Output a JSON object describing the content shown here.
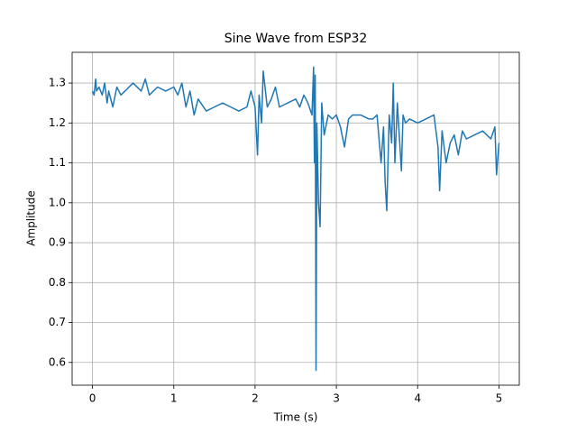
{
  "chart_data": {
    "type": "line",
    "title": "Sine Wave from ESP32",
    "x_label": "Time (s)",
    "y_label": "Amplitude",
    "grid": true,
    "xlim": [
      -0.25,
      5.25
    ],
    "xticks": [
      0,
      1,
      2,
      3,
      4,
      5
    ],
    "ylim": [
      0.543,
      1.377
    ],
    "yticks": [
      0.6,
      0.7,
      0.8,
      0.9,
      {
        "value": 1,
        "label": "1.0"
      },
      1.1,
      1.2,
      1.3
    ],
    "x": [
      0,
      0.02,
      0.04,
      0.05,
      0.08,
      0.12,
      0.15,
      0.18,
      0.2,
      0.25,
      0.3,
      0.35,
      0.4,
      0.5,
      0.6,
      0.65,
      0.7,
      0.8,
      0.9,
      1.0,
      1.05,
      1.1,
      1.15,
      1.2,
      1.25,
      1.3,
      1.4,
      1.5,
      1.6,
      1.7,
      1.8,
      1.9,
      1.95,
      2.0,
      2.03,
      2.05,
      2.08,
      2.1,
      2.15,
      2.2,
      2.25,
      2.3,
      2.4,
      2.5,
      2.55,
      2.6,
      2.65,
      2.7,
      2.72,
      2.73,
      2.74,
      2.75,
      2.76,
      2.78,
      2.8,
      2.82,
      2.85,
      2.9,
      2.95,
      3.0,
      3.05,
      3.1,
      3.15,
      3.2,
      3.3,
      3.4,
      3.45,
      3.5,
      3.55,
      3.58,
      3.6,
      3.62,
      3.65,
      3.68,
      3.7,
      3.72,
      3.75,
      3.8,
      3.82,
      3.85,
      3.9,
      4.0,
      4.1,
      4.2,
      4.25,
      4.27,
      4.3,
      4.35,
      4.4,
      4.45,
      4.5,
      4.55,
      4.6,
      4.7,
      4.8,
      4.9,
      4.95,
      4.97,
      5.0
    ],
    "series": [
      {
        "color": "#1f77b4",
        "values": [
          1.28,
          1.27,
          1.31,
          1.28,
          1.29,
          1.27,
          1.3,
          1.25,
          1.28,
          1.24,
          1.29,
          1.27,
          1.28,
          1.3,
          1.28,
          1.31,
          1.27,
          1.29,
          1.28,
          1.29,
          1.27,
          1.3,
          1.24,
          1.28,
          1.22,
          1.26,
          1.23,
          1.24,
          1.25,
          1.24,
          1.23,
          1.24,
          1.28,
          1.24,
          1.12,
          1.27,
          1.2,
          1.33,
          1.24,
          1.26,
          1.29,
          1.24,
          1.25,
          1.26,
          1.24,
          1.27,
          1.25,
          1.22,
          1.34,
          1.1,
          1.32,
          0.58,
          1.2,
          1.0,
          0.94,
          1.25,
          1.17,
          1.22,
          1.21,
          1.22,
          1.19,
          1.14,
          1.21,
          1.22,
          1.22,
          1.21,
          1.21,
          1.22,
          1.1,
          1.19,
          1.05,
          0.98,
          1.22,
          1.15,
          1.3,
          1.1,
          1.25,
          1.08,
          1.22,
          1.2,
          1.21,
          1.2,
          1.21,
          1.22,
          1.14,
          1.03,
          1.18,
          1.1,
          1.15,
          1.17,
          1.12,
          1.18,
          1.16,
          1.17,
          1.18,
          1.16,
          1.19,
          1.07,
          1.15
        ]
      }
    ]
  }
}
